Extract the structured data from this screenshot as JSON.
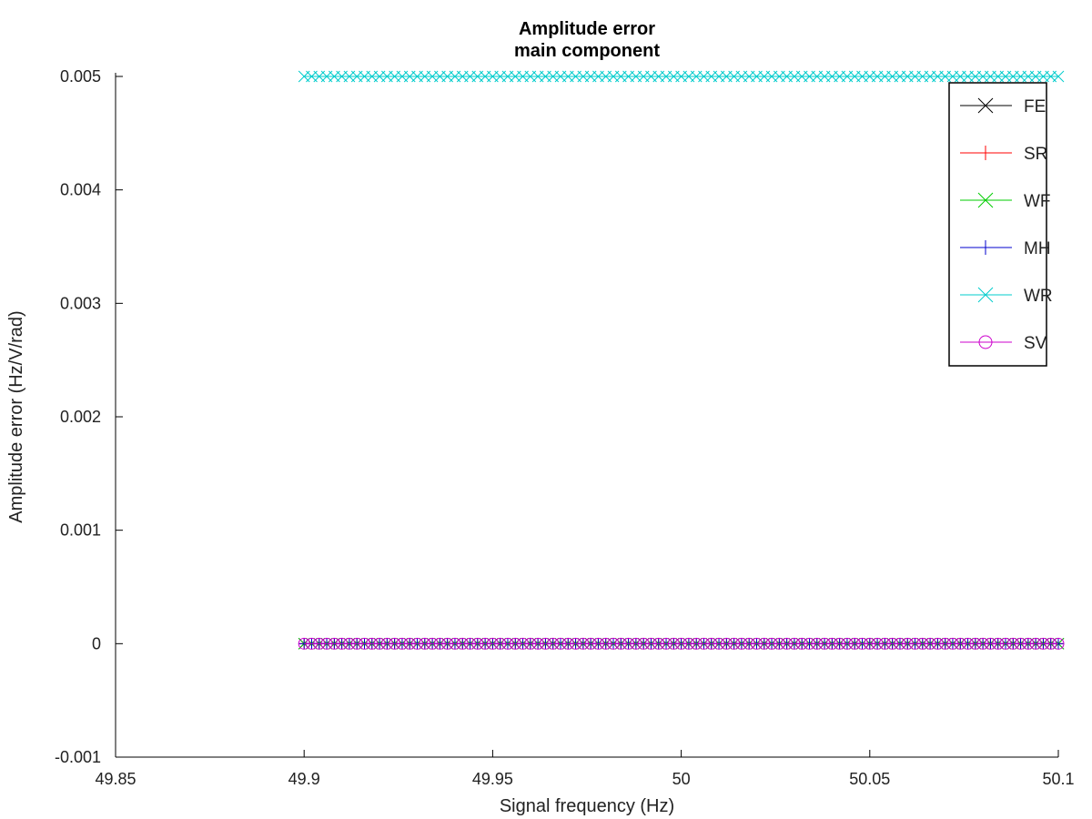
{
  "chart_data": {
    "type": "line",
    "title": [
      "Amplitude error",
      "main component"
    ],
    "xlabel": "Signal frequency (Hz)",
    "ylabel": "Amplitude error (Hz/V/rad)",
    "xlim": [
      49.85,
      50.1
    ],
    "ylim": [
      -0.001,
      0.005
    ],
    "x_ticks": [
      "49.85",
      "49.9",
      "49.95",
      "50",
      "50.05",
      "50.1"
    ],
    "y_ticks": [
      "-0.001",
      "0",
      "0.001",
      "0.002",
      "0.003",
      "0.004",
      "0.005"
    ],
    "legend_position": "top-right",
    "grid": false,
    "x": {
      "start": 49.9,
      "end": 50.1,
      "step": 0.002
    },
    "series": [
      {
        "name": "FE",
        "color": "#000000",
        "marker": "x",
        "constant_value": 0.0
      },
      {
        "name": "SR",
        "color": "#ff0000",
        "marker": "+",
        "constant_value": 0.0
      },
      {
        "name": "WF",
        "color": "#00cc00",
        "marker": "x",
        "constant_value": 0.0
      },
      {
        "name": "MH",
        "color": "#0000cc",
        "marker": "+",
        "constant_value": 0.0
      },
      {
        "name": "WR",
        "color": "#00cccc",
        "marker": "x",
        "constant_value": 0.005
      },
      {
        "name": "SV",
        "color": "#cc00cc",
        "marker": "o",
        "constant_value": 0.0
      }
    ]
  }
}
